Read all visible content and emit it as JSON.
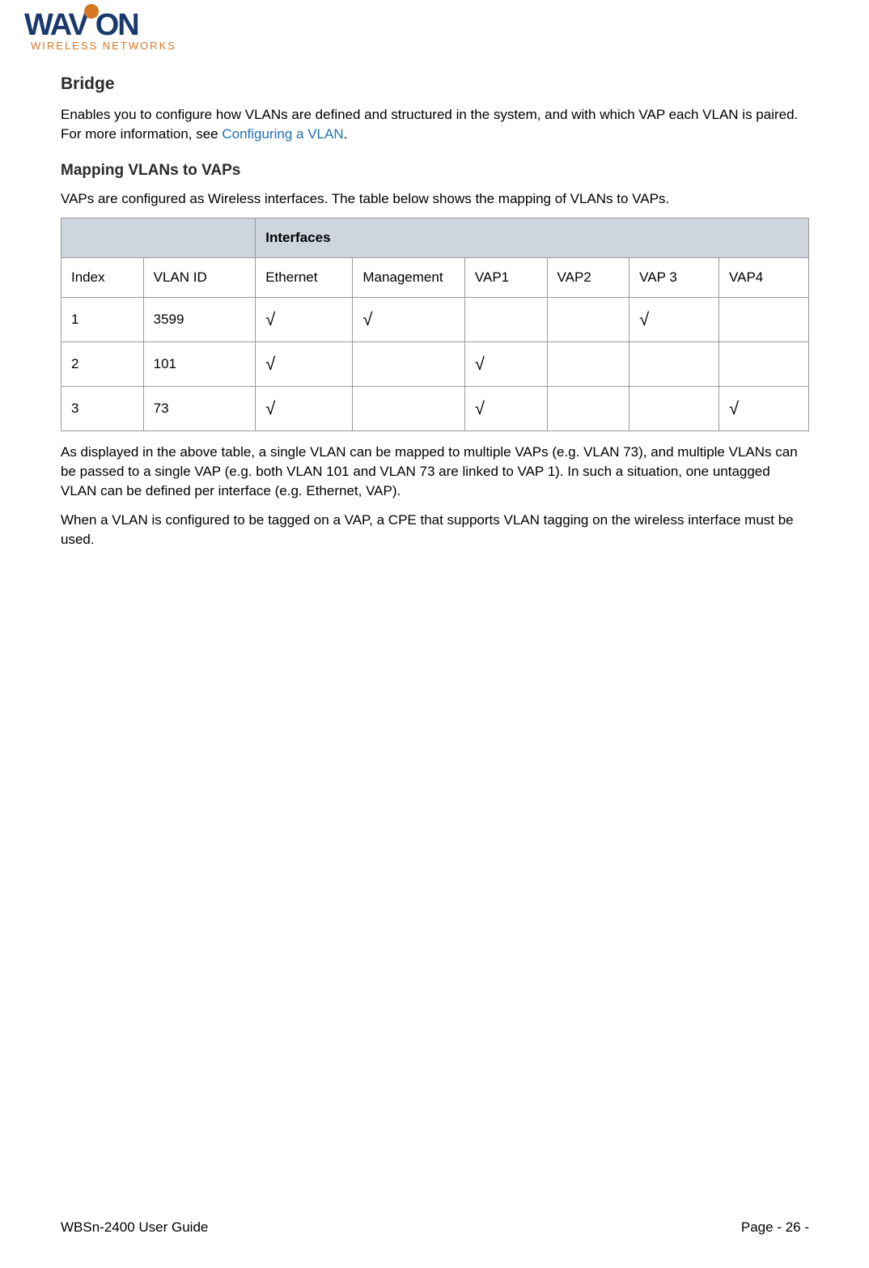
{
  "logo": {
    "brand_left": "WAV",
    "brand_right": "ON",
    "tagline": "WIRELESS NETWORKS",
    "brand_color": "#1a3a6e",
    "accent_color": "#d67826"
  },
  "headings": {
    "bridge": "Bridge",
    "mapping": "Mapping VLANs to VAPs"
  },
  "paragraphs": {
    "bridge_intro_1": "Enables you to configure how VLANs are defined and structured in the system, and with which VAP each VLAN is paired. For more information, see ",
    "bridge_link": "Configuring a VLAN",
    "bridge_intro_2": ".",
    "mapping_intro": "VAPs are configured as Wireless interfaces. The table below shows the mapping of VLANs to VAPs.",
    "after_table_1": "As displayed in the above table, a single VLAN can be mapped to multiple VAPs (e.g. VLAN 73), and multiple VLANs can be passed to a single VAP (e.g. both VLAN 101 and VLAN 73 are linked to VAP 1). In such a situation, one untagged VLAN can be defined per interface (e.g. Ethernet, VAP).",
    "after_table_2": "When a VLAN is configured to be tagged on a VAP, a CPE that supports VLAN tagging on the wireless interface must be used."
  },
  "table": {
    "header_group": "Interfaces",
    "columns": [
      "Index",
      "VLAN ID",
      "Ethernet",
      "Management",
      "VAP1",
      "VAP2",
      "VAP 3",
      "VAP4"
    ],
    "check_mark": "√",
    "rows": [
      {
        "index": "1",
        "vlan_id": "3599",
        "ethernet": true,
        "management": true,
        "vap1": false,
        "vap2": false,
        "vap3": true,
        "vap4": false
      },
      {
        "index": "2",
        "vlan_id": "101",
        "ethernet": true,
        "management": false,
        "vap1": true,
        "vap2": false,
        "vap3": false,
        "vap4": false
      },
      {
        "index": "3",
        "vlan_id": "73",
        "ethernet": true,
        "management": false,
        "vap1": true,
        "vap2": false,
        "vap3": false,
        "vap4": true
      }
    ],
    "header_bg": "#cfd5df",
    "border_color": "#999999",
    "col_widths": [
      "11%",
      "15%",
      "13%",
      "15%",
      "11%",
      "11%",
      "12%",
      "12%"
    ]
  },
  "footer": {
    "left": "WBSn-2400 User Guide",
    "right": "Page - 26 -"
  },
  "colors": {
    "text": "#000000",
    "heading": "#2b2b2b",
    "link": "#1f6fb2",
    "background": "#ffffff"
  },
  "typography": {
    "body_fontsize": 17,
    "h2_fontsize": 21,
    "h3_fontsize": 19
  }
}
